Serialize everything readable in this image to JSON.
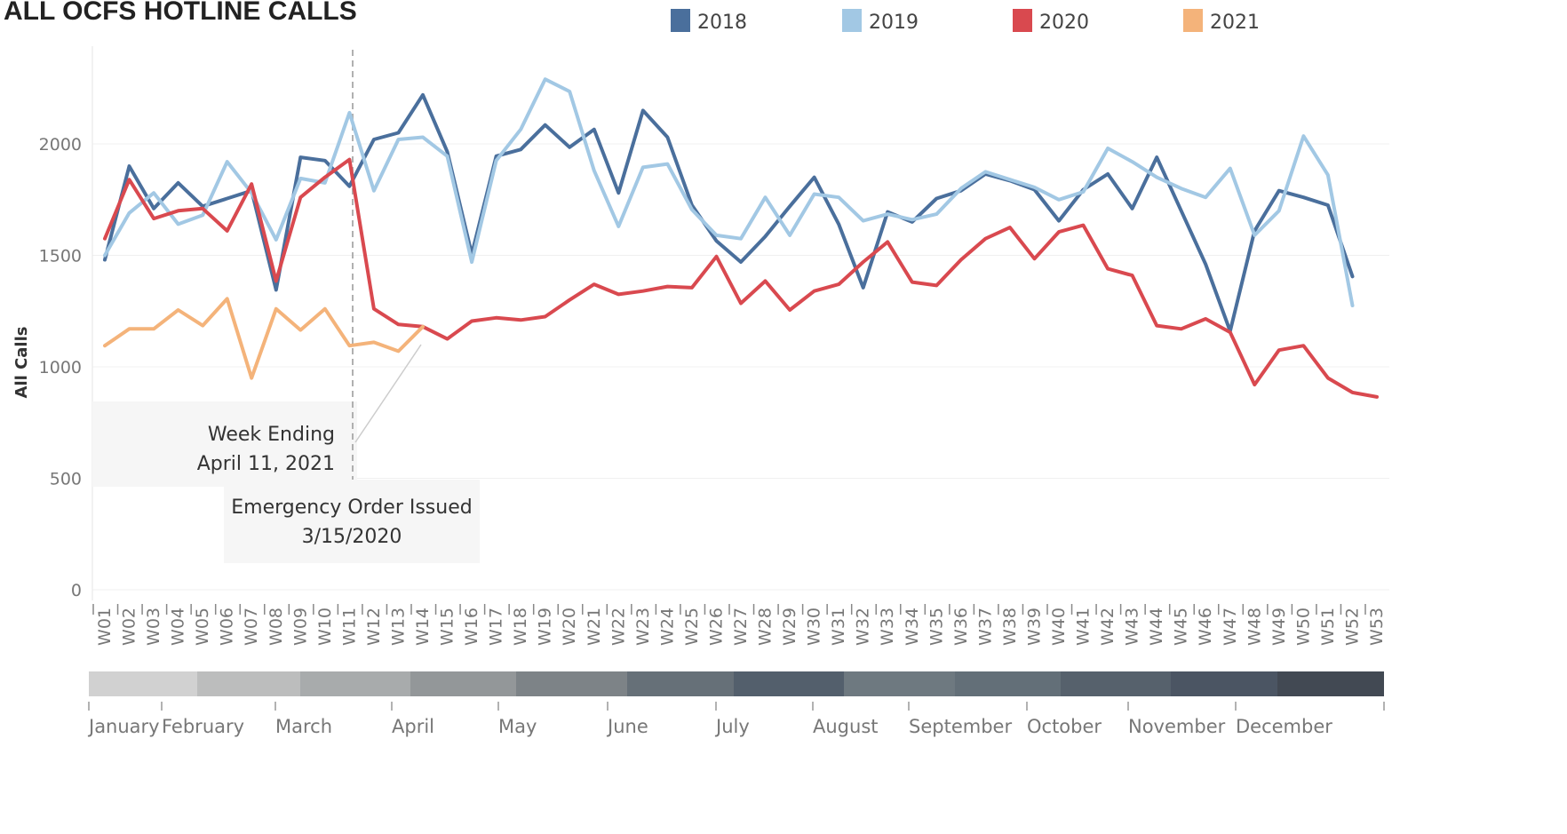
{
  "chart_data": {
    "type": "line",
    "title": "ALL OCFS HOTLINE CALLS",
    "ylabel": "All Calls",
    "xlabel": "",
    "ylim": [
      0,
      2300
    ],
    "yticks": [
      0,
      500,
      1000,
      1500,
      2000
    ],
    "legend_placement": "top",
    "grid": true,
    "categories": [
      "W01",
      "W02",
      "W03",
      "W04",
      "W05",
      "W06",
      "W07",
      "W08",
      "W09",
      "W10",
      "W11",
      "W12",
      "W13",
      "W14",
      "W15",
      "W16",
      "W17",
      "W18",
      "W19",
      "W20",
      "W21",
      "W22",
      "W23",
      "W24",
      "W25",
      "W26",
      "W27",
      "W28",
      "W29",
      "W30",
      "W31",
      "W32",
      "W33",
      "W34",
      "W35",
      "W36",
      "W37",
      "W38",
      "W39",
      "W40",
      "W41",
      "W42",
      "W43",
      "W44",
      "W45",
      "W46",
      "W47",
      "W48",
      "W49",
      "W50",
      "W51",
      "W52",
      "W53"
    ],
    "series": [
      {
        "name": "2018",
        "color": "#4a6f9c",
        "values": [
          1480,
          1900,
          1710,
          1825,
          1720,
          1755,
          1790,
          1345,
          1940,
          1925,
          1810,
          2020,
          2050,
          2220,
          1965,
          1505,
          1945,
          1975,
          2085,
          1985,
          2065,
          1780,
          2150,
          2030,
          1725,
          1565,
          1470,
          1585,
          1720,
          1850,
          1640,
          1355,
          1695,
          1650,
          1755,
          1790,
          1865,
          1835,
          1795,
          1655,
          1795,
          1865,
          1710,
          1940,
          1700,
          1460,
          1160,
          1610,
          1790,
          1760,
          1725,
          1405,
          null
        ]
      },
      {
        "name": "2019",
        "color": "#a2c8e4",
        "values": [
          1500,
          1690,
          1780,
          1640,
          1680,
          1920,
          1780,
          1570,
          1845,
          1825,
          2140,
          1790,
          2020,
          2030,
          1945,
          1470,
          1925,
          2065,
          2290,
          2235,
          1880,
          1630,
          1895,
          1910,
          1705,
          1590,
          1575,
          1760,
          1590,
          1775,
          1760,
          1655,
          1685,
          1660,
          1685,
          1800,
          1875,
          1840,
          1805,
          1750,
          1785,
          1980,
          1920,
          1850,
          1800,
          1760,
          1890,
          1590,
          1700,
          2035,
          1860,
          1275,
          null
        ]
      },
      {
        "name": "2020",
        "color": "#d9494f",
        "values": [
          1575,
          1840,
          1665,
          1700,
          1710,
          1610,
          1820,
          1385,
          1760,
          1850,
          1930,
          1260,
          1190,
          1180,
          1125,
          1205,
          1220,
          1210,
          1225,
          1300,
          1370,
          1325,
          1340,
          1360,
          1355,
          1495,
          1285,
          1385,
          1255,
          1340,
          1370,
          1470,
          1560,
          1380,
          1365,
          1480,
          1575,
          1625,
          1485,
          1605,
          1635,
          1440,
          1410,
          1185,
          1170,
          1215,
          1155,
          920,
          1075,
          1095,
          950,
          885,
          865
        ]
      },
      {
        "name": "2021",
        "color": "#f4b37a",
        "values": [
          1095,
          1170,
          1170,
          1255,
          1185,
          1305,
          950,
          1260,
          1165,
          1260,
          1095,
          1110,
          1070,
          1180,
          null,
          null,
          null,
          null,
          null,
          null,
          null,
          null,
          null,
          null,
          null,
          null,
          null,
          null,
          null,
          null,
          null,
          null,
          null,
          null,
          null,
          null,
          null,
          null,
          null,
          null,
          null,
          null,
          null,
          null,
          null,
          null,
          null,
          null,
          null,
          null,
          null,
          null,
          null
        ]
      }
    ],
    "months": [
      "January",
      "February",
      "March",
      "April",
      "May",
      "June",
      "July",
      "August",
      "September",
      "October",
      "November",
      "December"
    ],
    "annotations": {
      "week_ending": [
        "Week Ending",
        "April 11, 2021"
      ],
      "emergency_order": [
        "Emergency Order Issued",
        "3/15/2020"
      ]
    }
  }
}
